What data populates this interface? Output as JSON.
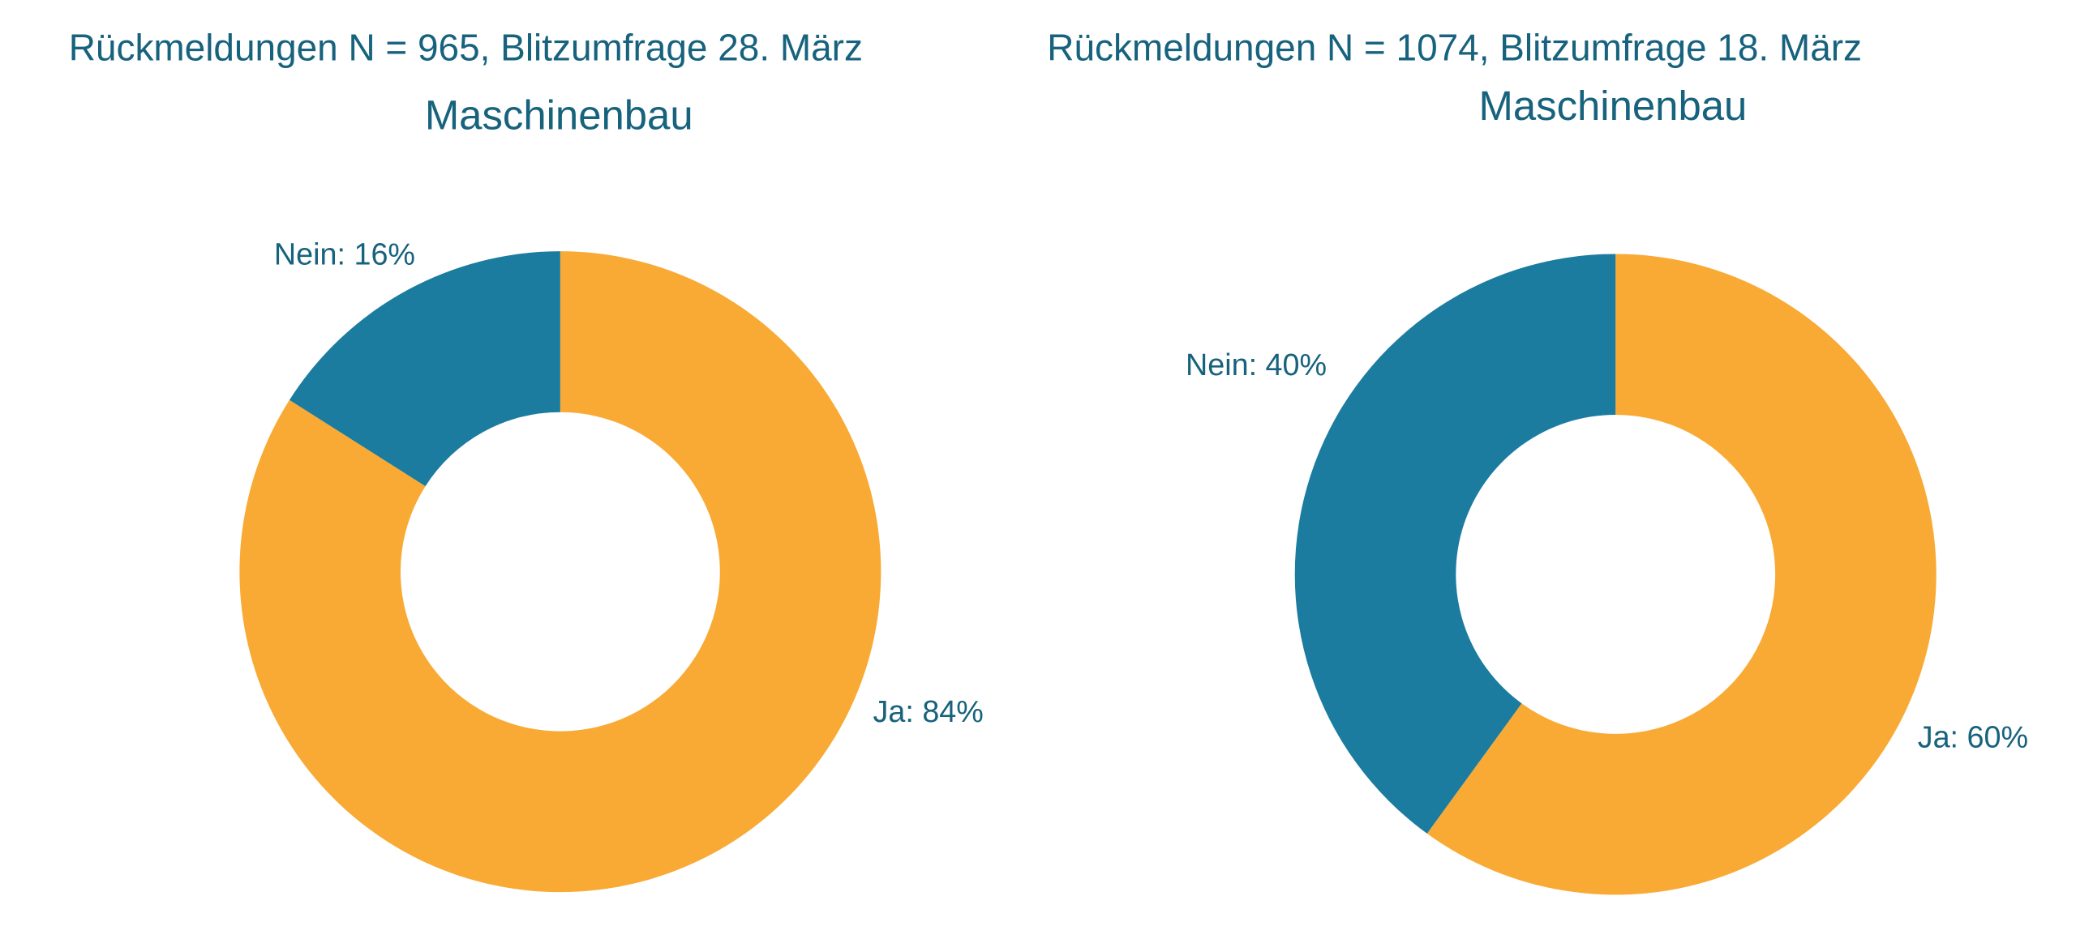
{
  "chart_data": [
    {
      "type": "donut",
      "title": "Rückmeldungen N = 965, Blitzumfrage 28. März",
      "subtitle": "Maschinenbau",
      "values": [
        84,
        16
      ],
      "value_labels": [
        "Ja: 84%",
        "Nein: 16%"
      ],
      "colors": [
        "#f8aa35",
        "#1b7ca0"
      ]
    },
    {
      "type": "donut",
      "title": "Rückmeldungen N = 1074, Blitzumfrage 18. März",
      "subtitle": "Maschinenbau",
      "values": [
        60,
        40
      ],
      "value_labels": [
        "Ja: 60%",
        "Nein: 40%"
      ],
      "colors": [
        "#f8aa35",
        "#1b7ca0"
      ]
    }
  ]
}
